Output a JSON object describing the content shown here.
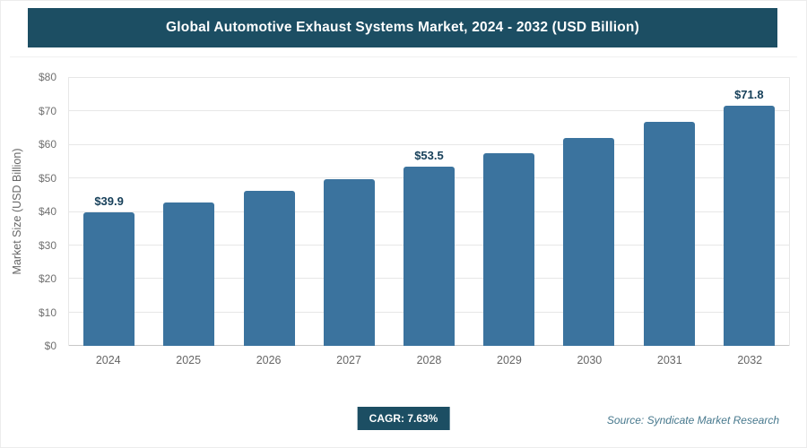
{
  "header": {
    "title": "Global Automotive Exhaust Systems Market, 2024 - 2032 (USD Billion)"
  },
  "chart_data": {
    "type": "bar",
    "title": "Global Automotive Exhaust Systems Market, 2024 - 2032 (USD Billion)",
    "categories": [
      "2024",
      "2025",
      "2026",
      "2027",
      "2028",
      "2029",
      "2030",
      "2031",
      "2032"
    ],
    "values": [
      39.9,
      42.9,
      46.2,
      49.7,
      53.5,
      57.6,
      62.0,
      66.8,
      71.8
    ],
    "point_labels": [
      "$39.9",
      "",
      "",
      "",
      "$53.5",
      "",
      "",
      "",
      "$71.8"
    ],
    "xlabel": "",
    "ylabel": "Market Size (USD Billion)",
    "ylim": [
      0,
      80
    ],
    "ytick_step": 10,
    "ytick_prefix": "$",
    "grid": "horizontal",
    "legend": "none",
    "bar_color": "#3b739e"
  },
  "footer": {
    "cagr_label": "CAGR: 7.63%",
    "source": "Source: Syndicate Market Research"
  },
  "colors": {
    "banner_bg": "#1c4e63",
    "banner_text": "#ffffff",
    "bar": "#3b739e",
    "value_label": "#17405a",
    "axis_text": "#666666",
    "gridline": "#e7e7e7",
    "source_text": "#47788d"
  }
}
